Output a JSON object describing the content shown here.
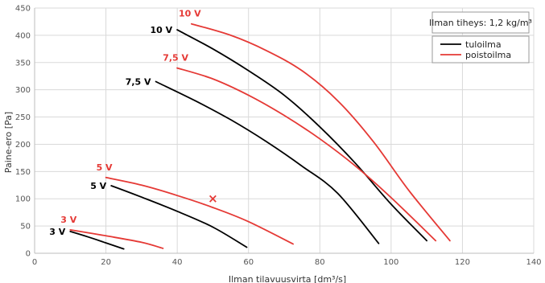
{
  "chart_data": {
    "type": "line",
    "xlabel": "Ilman tilavuusvirta [dm³/s]",
    "ylabel": "Paine-ero [Pa]",
    "xlim": [
      0,
      140
    ],
    "ylim": [
      0,
      450
    ],
    "x_ticks": [
      "0",
      "20",
      "40",
      "60",
      "80",
      "100",
      "120",
      "140"
    ],
    "y_ticks": [
      "0",
      "50",
      "100",
      "150",
      "200",
      "250",
      "300",
      "350",
      "400",
      "450"
    ],
    "grid": true,
    "annotation_box": "Ilman tiheys: 1,2 kg/m³",
    "legend": {
      "placement": "top-right",
      "entries": [
        {
          "name": "tuloilma",
          "color": "#000000"
        },
        {
          "name": "poistoilma",
          "color": "#e53935"
        }
      ]
    },
    "series": [
      {
        "name": "tuloilma",
        "label": "10 V",
        "color": "#000000",
        "points": [
          [
            40,
            410
          ],
          [
            50,
            375
          ],
          [
            60,
            335
          ],
          [
            70,
            290
          ],
          [
            80,
            232
          ],
          [
            90,
            165
          ],
          [
            100,
            90
          ],
          [
            110,
            23
          ]
        ]
      },
      {
        "name": "tuloilma",
        "label": "7,5 V",
        "color": "#000000",
        "points": [
          [
            34,
            315
          ],
          [
            45,
            280
          ],
          [
            55,
            245
          ],
          [
            65,
            205
          ],
          [
            75,
            160
          ],
          [
            85,
            110
          ],
          [
            96.5,
            18
          ]
        ]
      },
      {
        "name": "tuloilma",
        "label": "5 V",
        "color": "#000000",
        "points": [
          [
            21.5,
            124
          ],
          [
            30,
            103
          ],
          [
            40,
            77
          ],
          [
            50,
            48
          ],
          [
            59.5,
            11
          ]
        ]
      },
      {
        "name": "tuloilma",
        "label": "3 V",
        "color": "#000000",
        "points": [
          [
            10,
            40
          ],
          [
            15,
            30
          ],
          [
            20,
            19
          ],
          [
            25,
            8
          ]
        ]
      },
      {
        "name": "poistoilma",
        "label": "10 V",
        "color": "#e53935",
        "points": [
          [
            44,
            421
          ],
          [
            55,
            400
          ],
          [
            65,
            372
          ],
          [
            75,
            335
          ],
          [
            85,
            280
          ],
          [
            95,
            205
          ],
          [
            105,
            115
          ],
          [
            116.5,
            23
          ]
        ]
      },
      {
        "name": "poistoilma",
        "label": "7,5 V",
        "color": "#e53935",
        "points": [
          [
            40,
            340
          ],
          [
            50,
            320
          ],
          [
            60,
            290
          ],
          [
            70,
            253
          ],
          [
            80,
            210
          ],
          [
            90,
            160
          ],
          [
            100,
            102
          ],
          [
            112.5,
            23
          ]
        ]
      },
      {
        "name": "poistoilma",
        "label": "5 V",
        "color": "#e53935",
        "points": [
          [
            20,
            139
          ],
          [
            30,
            125
          ],
          [
            40,
            106
          ],
          [
            50,
            84
          ],
          [
            60,
            58
          ],
          [
            72.5,
            17
          ]
        ]
      },
      {
        "name": "poistoilma",
        "label": "3 V",
        "color": "#e53935",
        "points": [
          [
            10,
            43
          ],
          [
            20,
            32
          ],
          [
            30,
            20
          ],
          [
            36,
            9
          ]
        ]
      }
    ],
    "marker": {
      "symbol": "×",
      "x": 50,
      "y": 100,
      "color": "#e53935"
    }
  }
}
